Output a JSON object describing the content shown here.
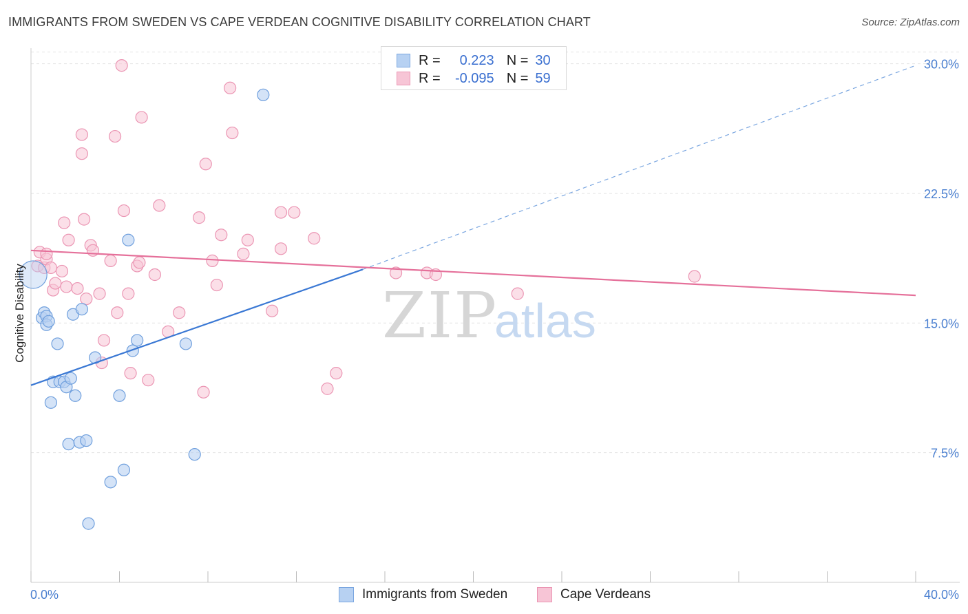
{
  "title": "IMMIGRANTS FROM SWEDEN VS CAPE VERDEAN COGNITIVE DISABILITY CORRELATION CHART",
  "source": "Source: ZipAtlas.com",
  "watermark": {
    "zip": "ZIP",
    "atlas": "atlas"
  },
  "legend": {
    "rows": [
      {
        "r_label": "R =",
        "r_value": "0.223",
        "n_label": "N =",
        "n_value": "30"
      },
      {
        "r_label": "R =",
        "r_value": "-0.095",
        "n_label": "N =",
        "n_value": "59"
      }
    ]
  },
  "colors": {
    "blue": "#3a78d4",
    "blue_fill": "#b7d1f2",
    "pink": "#e5709a",
    "pink_fill": "#f7c5d6",
    "grid": "#e2e2e2",
    "tick_text": "#4a7fd0"
  },
  "chart_data": {
    "type": "scatter",
    "title": "IMMIGRANTS FROM SWEDEN VS CAPE VERDEAN COGNITIVE DISABILITY CORRELATION CHART",
    "xlabel": "",
    "ylabel": "Cognitive Disability",
    "xlim": [
      0,
      40
    ],
    "ylim": [
      0,
      30.9
    ],
    "x_tick_labels": [
      "0.0%",
      "40.0%"
    ],
    "y_ticks": [
      7.5,
      15.0,
      22.5,
      30.0
    ],
    "y_tick_labels": [
      "7.5%",
      "15.0%",
      "22.5%",
      "30.0%"
    ],
    "series": [
      {
        "name": "Immigrants from Sweden",
        "color": "#3a78d4",
        "trend": {
          "x1": 0,
          "y1": 11.4,
          "x2": 15.0,
          "y2": 18.1,
          "dash_to_x": 40,
          "dash_to_y": 29.9
        },
        "points": [
          [
            0.1,
            17.8
          ],
          [
            0.5,
            15.3
          ],
          [
            0.6,
            15.6
          ],
          [
            0.7,
            15.4
          ],
          [
            0.7,
            14.9
          ],
          [
            0.8,
            15.1
          ],
          [
            1.2,
            13.8
          ],
          [
            0.9,
            10.4
          ],
          [
            1.0,
            11.6
          ],
          [
            1.3,
            11.6
          ],
          [
            1.5,
            11.6
          ],
          [
            1.6,
            11.3
          ],
          [
            1.8,
            11.8
          ],
          [
            2.0,
            10.8
          ],
          [
            1.9,
            15.5
          ],
          [
            2.3,
            15.8
          ],
          [
            1.7,
            8.0
          ],
          [
            2.2,
            8.1
          ],
          [
            2.5,
            8.2
          ],
          [
            2.9,
            13.0
          ],
          [
            3.6,
            5.8
          ],
          [
            4.0,
            10.8
          ],
          [
            4.2,
            6.5
          ],
          [
            2.6,
            3.4
          ],
          [
            4.4,
            19.8
          ],
          [
            4.6,
            13.4
          ],
          [
            4.8,
            14.0
          ],
          [
            7.0,
            13.8
          ],
          [
            7.4,
            7.4
          ],
          [
            10.5,
            28.2
          ]
        ]
      },
      {
        "name": "Cape Verdeans",
        "color": "#e5709a",
        "trend": {
          "x1": 0,
          "y1": 19.2,
          "x2": 40,
          "y2": 16.6
        },
        "points": [
          [
            0.3,
            18.3
          ],
          [
            0.4,
            19.1
          ],
          [
            0.6,
            18.2
          ],
          [
            0.7,
            18.7
          ],
          [
            0.7,
            19.0
          ],
          [
            0.9,
            18.2
          ],
          [
            1.0,
            16.9
          ],
          [
            1.1,
            17.3
          ],
          [
            1.4,
            18.0
          ],
          [
            1.5,
            20.8
          ],
          [
            1.6,
            17.1
          ],
          [
            1.7,
            19.8
          ],
          [
            2.1,
            17.0
          ],
          [
            2.5,
            16.4
          ],
          [
            2.3,
            24.8
          ],
          [
            2.4,
            21.0
          ],
          [
            2.3,
            25.9
          ],
          [
            2.7,
            19.5
          ],
          [
            2.8,
            19.2
          ],
          [
            3.1,
            16.7
          ],
          [
            3.2,
            12.7
          ],
          [
            3.3,
            14.0
          ],
          [
            3.6,
            18.6
          ],
          [
            3.8,
            25.8
          ],
          [
            3.9,
            15.6
          ],
          [
            4.1,
            29.9
          ],
          [
            4.2,
            21.5
          ],
          [
            4.4,
            16.7
          ],
          [
            4.5,
            12.1
          ],
          [
            4.8,
            18.3
          ],
          [
            4.9,
            18.5
          ],
          [
            5.0,
            26.9
          ],
          [
            5.3,
            11.7
          ],
          [
            5.6,
            17.8
          ],
          [
            5.8,
            21.8
          ],
          [
            6.2,
            14.5
          ],
          [
            6.7,
            15.6
          ],
          [
            7.6,
            21.1
          ],
          [
            7.8,
            11.0
          ],
          [
            7.9,
            24.2
          ],
          [
            8.2,
            18.6
          ],
          [
            8.4,
            17.2
          ],
          [
            8.6,
            20.1
          ],
          [
            9.0,
            28.6
          ],
          [
            9.1,
            26.0
          ],
          [
            9.6,
            19.0
          ],
          [
            9.8,
            19.8
          ],
          [
            10.9,
            15.7
          ],
          [
            11.3,
            19.3
          ],
          [
            11.3,
            21.4
          ],
          [
            11.9,
            21.4
          ],
          [
            12.8,
            19.9
          ],
          [
            13.4,
            11.2
          ],
          [
            13.8,
            12.1
          ],
          [
            16.5,
            17.9
          ],
          [
            17.9,
            17.9
          ],
          [
            18.3,
            17.8
          ],
          [
            22.0,
            16.7
          ],
          [
            30.0,
            17.7
          ]
        ]
      }
    ]
  }
}
